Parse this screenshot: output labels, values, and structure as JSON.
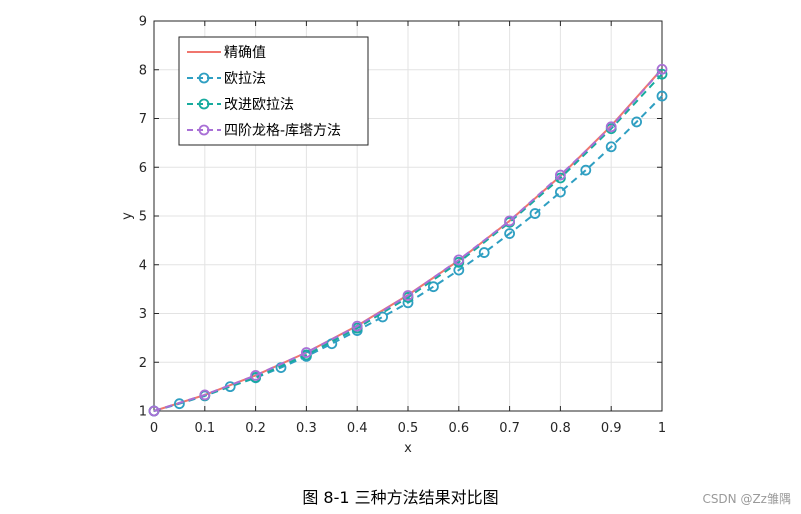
{
  "caption": "图 8-1  三种方法结果对比图",
  "watermark": "CSDN @Zz雏隅",
  "chart_data": {
    "type": "line",
    "xlabel": "x",
    "ylabel": "y",
    "xlim": [
      0,
      1
    ],
    "ylim": [
      1,
      9
    ],
    "xticks": [
      0,
      0.1,
      0.2,
      0.3,
      0.4,
      0.5,
      0.6,
      0.7,
      0.8,
      0.9,
      1
    ],
    "xtick_labels": [
      "0",
      "0.1",
      "0.2",
      "0.3",
      "0.4",
      "0.5",
      "0.6",
      "0.7",
      "0.8",
      "0.9",
      "1"
    ],
    "yticks": [
      1,
      2,
      3,
      4,
      5,
      6,
      7,
      8,
      9
    ],
    "ytick_labels": [
      "1",
      "2",
      "3",
      "4",
      "5",
      "6",
      "7",
      "8",
      "9"
    ],
    "grid": true,
    "legend_position": "top-left",
    "series": [
      {
        "name": "精确值",
        "style": "solid",
        "marker": "none",
        "color": "#f0766e",
        "x": [
          0,
          0.1,
          0.2,
          0.3,
          0.4,
          0.5,
          0.6,
          0.7,
          0.8,
          0.9,
          1.0
        ],
        "y": [
          1.0,
          1.33,
          1.73,
          2.2,
          2.75,
          3.38,
          4.09,
          4.9,
          5.82,
          6.85,
          8.02
        ]
      },
      {
        "name": "欧拉法",
        "style": "dashed",
        "marker": "circle",
        "color": "#2f9fc2",
        "x": [
          0,
          0.05,
          0.1,
          0.15,
          0.2,
          0.25,
          0.3,
          0.35,
          0.4,
          0.45,
          0.5,
          0.55,
          0.6,
          0.65,
          0.7,
          0.75,
          0.8,
          0.85,
          0.9,
          0.95,
          1.0
        ],
        "y": [
          1.0,
          1.15,
          1.31,
          1.5,
          1.68,
          1.89,
          2.12,
          2.38,
          2.65,
          2.93,
          3.22,
          3.55,
          3.89,
          4.25,
          4.64,
          5.05,
          5.49,
          5.94,
          6.42,
          6.93,
          7.46
        ]
      },
      {
        "name": "改进欧拉法",
        "style": "dashed",
        "marker": "circle",
        "color": "#17ab9e",
        "x": [
          0,
          0.1,
          0.2,
          0.3,
          0.4,
          0.5,
          0.6,
          0.7,
          0.8,
          0.9,
          1.0
        ],
        "y": [
          1.0,
          1.32,
          1.69,
          2.15,
          2.7,
          3.33,
          4.05,
          4.87,
          5.78,
          6.79,
          7.91
        ]
      },
      {
        "name": "四阶龙格-库塔方法",
        "style": "dashed",
        "marker": "circle",
        "color": "#a970d6",
        "x": [
          0,
          0.1,
          0.2,
          0.3,
          0.4,
          0.5,
          0.6,
          0.7,
          0.8,
          0.9,
          1.0
        ],
        "y": [
          1.0,
          1.33,
          1.73,
          2.2,
          2.74,
          3.37,
          4.1,
          4.9,
          5.84,
          6.83,
          8.01
        ]
      }
    ]
  }
}
